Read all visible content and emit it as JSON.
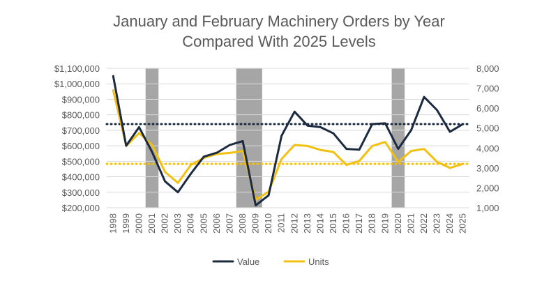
{
  "chart_data": {
    "type": "line",
    "title_lines": [
      "January and February Machinery Orders by Year",
      "Compared With 2025 Levels"
    ],
    "categories": [
      "1998",
      "1999",
      "2000",
      "2001",
      "2002",
      "2003",
      "2004",
      "2005",
      "2006",
      "2007",
      "2008",
      "2009",
      "2010",
      "2011",
      "2012",
      "2013",
      "2014",
      "2015",
      "2016",
      "2017",
      "2018",
      "2019",
      "2020",
      "2021",
      "2022",
      "2023",
      "2024",
      "2025"
    ],
    "series": [
      {
        "name": "Value",
        "axis": "left",
        "color": "#1b2a3f",
        "values": [
          1050000,
          600000,
          720000,
          560000,
          370000,
          300000,
          420000,
          530000,
          555000,
          605000,
          630000,
          215000,
          280000,
          665000,
          820000,
          730000,
          720000,
          680000,
          580000,
          575000,
          740000,
          745000,
          580000,
          700000,
          915000,
          830000,
          690000,
          740000
        ]
      },
      {
        "name": "Units",
        "axis": "right",
        "color": "#f2c010",
        "values": [
          6900,
          4100,
          4750,
          4150,
          2800,
          2250,
          3150,
          3500,
          3700,
          3750,
          3850,
          1400,
          1800,
          3450,
          4150,
          4100,
          3900,
          3800,
          3150,
          3350,
          4100,
          4300,
          3300,
          3850,
          3950,
          3300,
          3000,
          3200
        ]
      }
    ],
    "reference_lines": [
      {
        "name": "Value 2025 level",
        "axis": "left",
        "value": 740000,
        "color": "#1b2a3f"
      },
      {
        "name": "Units 2025 level",
        "axis": "right",
        "value": 3200,
        "color": "#f2c010"
      }
    ],
    "recession_bands": [
      {
        "from": "2001",
        "to": "2001"
      },
      {
        "from": "2008",
        "to": "2009"
      },
      {
        "from": "2020",
        "to": "2020"
      }
    ],
    "band_color": "#a6a6a6",
    "left_axis": {
      "ylim": [
        200000,
        1100000
      ],
      "ticks": [
        200000,
        300000,
        400000,
        500000,
        600000,
        700000,
        800000,
        900000,
        1000000,
        1100000
      ],
      "tick_labels": [
        "$200,000",
        "$300,000",
        "$400,000",
        "$500,000",
        "$600,000",
        "$700,000",
        "$800,000",
        "$900,000",
        "$1,000,000",
        "$1,100,000"
      ]
    },
    "right_axis": {
      "ylim": [
        1000,
        8000
      ],
      "ticks": [
        1000,
        2000,
        3000,
        4000,
        5000,
        6000,
        7000,
        8000
      ],
      "tick_labels": [
        "1,000",
        "2,000",
        "3,000",
        "4,000",
        "5,000",
        "6,000",
        "7,000",
        "8,000"
      ]
    },
    "gridline_color": "#d9d9d9",
    "legend": [
      {
        "label": "Value",
        "color": "#1b2a3f"
      },
      {
        "label": "Units",
        "color": "#f2c010"
      }
    ],
    "legend_position": "bottom"
  }
}
